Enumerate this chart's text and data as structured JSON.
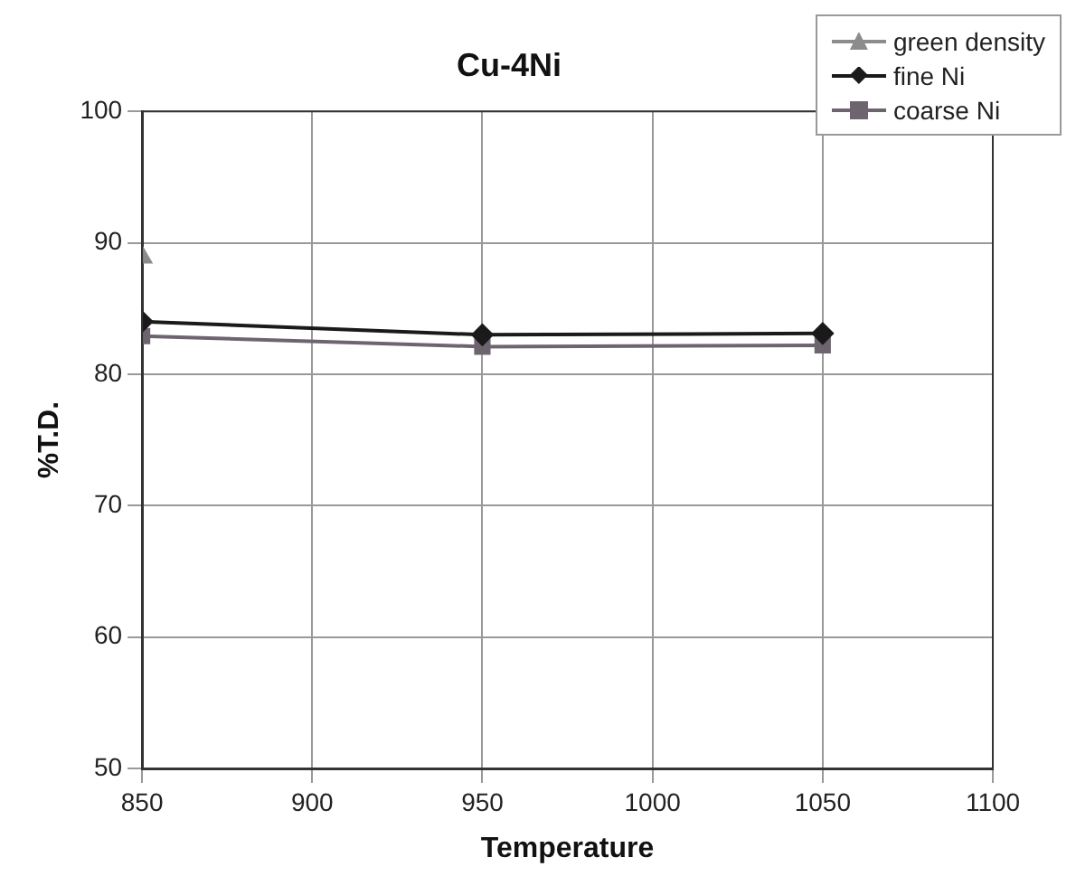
{
  "chart_data": {
    "type": "line",
    "title": "Cu-4Ni",
    "xlabel": "Temperature",
    "ylabel": "%T.D.",
    "xlim": [
      850,
      1100
    ],
    "xticks": [
      850,
      900,
      950,
      1000,
      1050,
      1100
    ],
    "ylim": [
      50,
      100
    ],
    "yticks": [
      50,
      60,
      70,
      80,
      90,
      100
    ],
    "grid": true,
    "legend": "top right",
    "line_style": "solid",
    "series": [
      {
        "name": "green density",
        "color": "#8c8c8c",
        "marker": "triangle",
        "x": [
          850
        ],
        "values": [
          88.9
        ]
      },
      {
        "name": "fine Ni",
        "color": "#1a1a1a",
        "marker": "diamond",
        "x": [
          850,
          950,
          1050
        ],
        "values": [
          84.0,
          83.0,
          83.1
        ]
      },
      {
        "name": "coarse Ni",
        "color": "#6e6470",
        "marker": "square",
        "x": [
          850,
          950,
          1050
        ],
        "values": [
          82.9,
          82.1,
          82.2
        ]
      }
    ]
  }
}
